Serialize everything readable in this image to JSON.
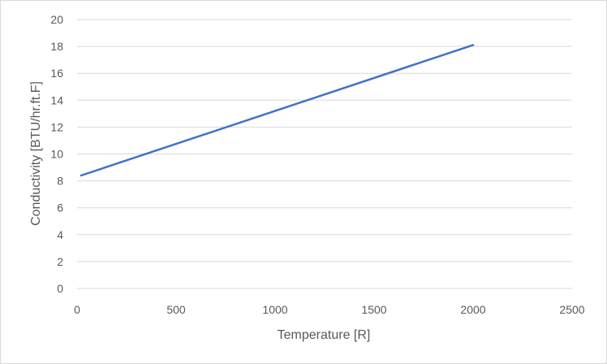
{
  "chart_data": {
    "type": "line",
    "title": "",
    "xlabel": "Temperature [R]",
    "ylabel": "Conductivity [BTU/hr.ft.F]",
    "xlim": [
      0,
      2500
    ],
    "ylim": [
      0,
      20
    ],
    "x_ticks": [
      "0",
      "500",
      "1000",
      "1500",
      "2000",
      "2500"
    ],
    "y_ticks": [
      "0",
      "2",
      "4",
      "6",
      "8",
      "10",
      "12",
      "14",
      "16",
      "18",
      "20"
    ],
    "grid": "horizontal",
    "legend": "none",
    "series": [
      {
        "color": "#4472c4",
        "x": [
          20,
          2000
        ],
        "y": [
          8.4,
          18.1
        ]
      }
    ]
  }
}
